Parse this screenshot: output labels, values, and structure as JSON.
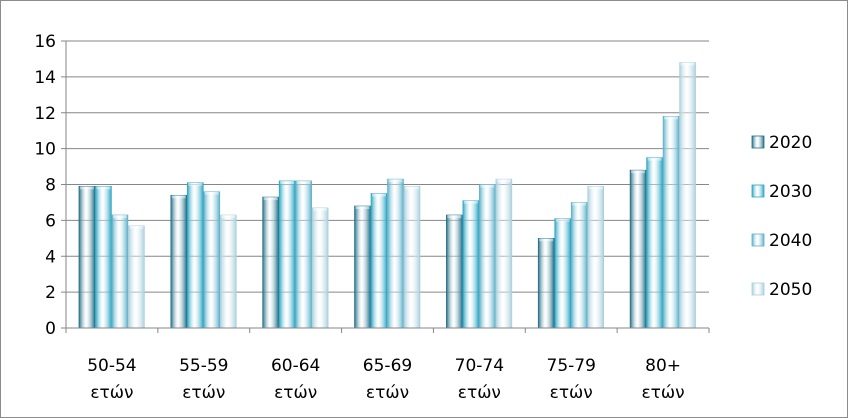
{
  "chart_data": {
    "type": "bar",
    "categories": [
      [
        "50-54",
        "ετών"
      ],
      [
        "55-59",
        "ετών"
      ],
      [
        "60-64",
        "ετών"
      ],
      [
        "65-69",
        "ετών"
      ],
      [
        "70-74",
        "ετών"
      ],
      [
        "75-79",
        "ετών"
      ],
      [
        "80+",
        "ετών"
      ]
    ],
    "series": [
      {
        "name": "2020",
        "values": [
          7.9,
          7.4,
          7.3,
          6.8,
          6.3,
          5.0,
          8.8
        ],
        "color": "#1f6e86"
      },
      {
        "name": "2030",
        "values": [
          7.9,
          8.1,
          8.2,
          7.5,
          7.1,
          6.1,
          9.5
        ],
        "color": "#2aa5c3"
      },
      {
        "name": "2040",
        "values": [
          6.3,
          7.6,
          8.2,
          8.3,
          8.0,
          7.0,
          11.8
        ],
        "color": "#5ab0c9"
      },
      {
        "name": "2050",
        "values": [
          5.7,
          6.3,
          6.7,
          7.9,
          8.3,
          7.9,
          14.8
        ],
        "color": "#a9cfdd"
      }
    ],
    "yticks": [
      0,
      2,
      4,
      6,
      8,
      10,
      12,
      14,
      16
    ],
    "ylim": [
      0,
      16
    ],
    "grid": true,
    "legend_position": "right",
    "title": "",
    "xlabel": "",
    "ylabel": ""
  }
}
